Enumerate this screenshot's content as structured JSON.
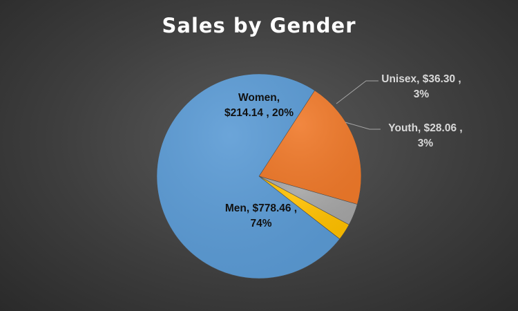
{
  "chart_data": {
    "type": "pie",
    "title": "Sales by Gender",
    "slices": [
      {
        "name": "Women",
        "value": 214.14,
        "percent": 20,
        "color": "#f07a2b",
        "label_lines": [
          "Women,",
          "$214.14 , 20%"
        ],
        "label_position": "inside"
      },
      {
        "name": "Unisex",
        "value": 36.3,
        "percent": 3,
        "color": "#a5a5a5",
        "label_lines": [
          "Unisex,  $36.30 ,",
          "3%"
        ],
        "label_position": "outside"
      },
      {
        "name": "Youth",
        "value": 28.06,
        "percent": 3,
        "color": "#ffc000",
        "label_lines": [
          "Youth,  $28.06 ,",
          "3%"
        ],
        "label_position": "outside"
      },
      {
        "name": "Men",
        "value": 778.46,
        "percent": 74,
        "color": "#5b9bd5",
        "label_lines": [
          "Men,  $778.46 ,",
          "74%"
        ],
        "label_position": "inside"
      }
    ],
    "legend": "none"
  }
}
